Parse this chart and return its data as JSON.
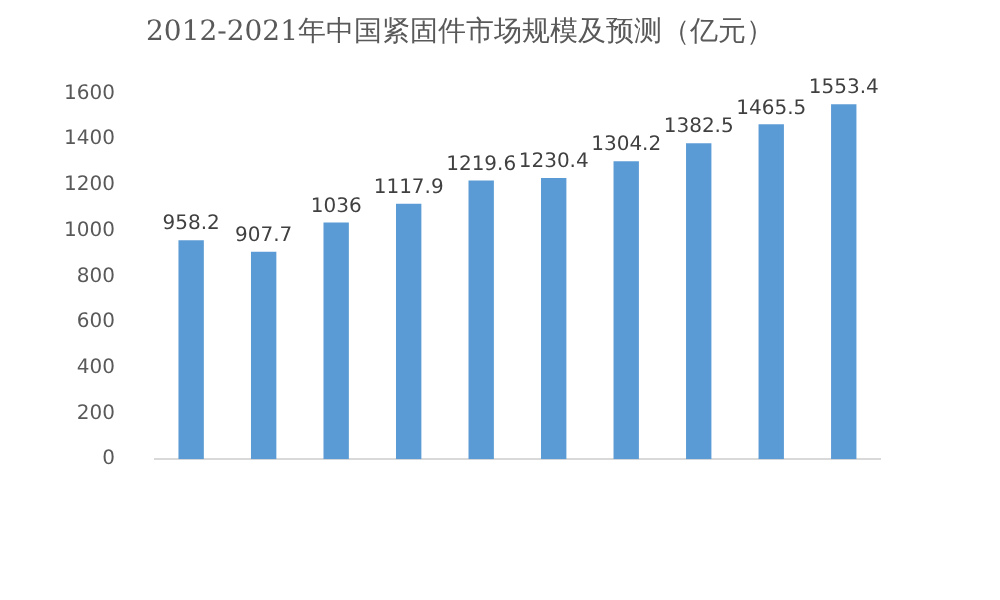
{
  "chart_data": {
    "type": "bar",
    "title": "2012-2021年中国紧固件市场规模及预测（亿元）",
    "categories": [
      null,
      null,
      null,
      null,
      null,
      null,
      null,
      null,
      null,
      null
    ],
    "values": [
      958.2,
      907.7,
      1036,
      1117.9,
      1219.6,
      1230.4,
      1304.2,
      1382.5,
      1465.5,
      1553.4
    ],
    "color": "#5b9bd5",
    "ylim": [
      0,
      1600
    ],
    "yticks": [
      0,
      200,
      400,
      600,
      800,
      1000,
      1200,
      1400,
      1600
    ],
    "grid": false,
    "data_labels": true
  }
}
